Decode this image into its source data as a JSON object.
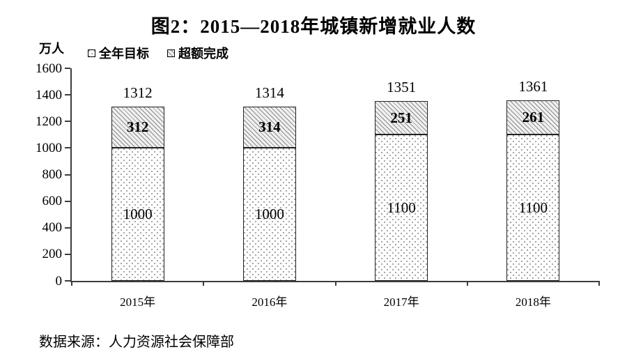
{
  "title": "图2：2015—2018年城镇新增就业人数",
  "y_axis_unit": "万人",
  "source_note": "数据来源：人力资源社会保障部",
  "colors": {
    "text": "#000000",
    "axis": "#3c3c3c",
    "bar_border": "#222222",
    "pattern_ink": "#8a8a8a",
    "background": "#ffffff"
  },
  "chart_data": {
    "type": "bar",
    "stacked": true,
    "title": "图2：2015—2018年城镇新增就业人数",
    "categories": [
      "2015年",
      "2016年",
      "2017年",
      "2018年"
    ],
    "series": [
      {
        "name": "全年目标",
        "pattern": "dots",
        "values": [
          1000,
          1000,
          1100,
          1100
        ]
      },
      {
        "name": "超额完成",
        "pattern": "hatch",
        "values": [
          312,
          314,
          251,
          261
        ]
      }
    ],
    "totals": [
      1312,
      1314,
      1351,
      1361
    ],
    "ylabel": "万人",
    "xlabel": "",
    "ylim": [
      0,
      1600
    ],
    "yticks": [
      0,
      200,
      400,
      600,
      800,
      1000,
      1200,
      1400,
      1600
    ],
    "grid": false,
    "legend_position": "top-left",
    "value_labels": "inside-segments-and-total-above"
  }
}
